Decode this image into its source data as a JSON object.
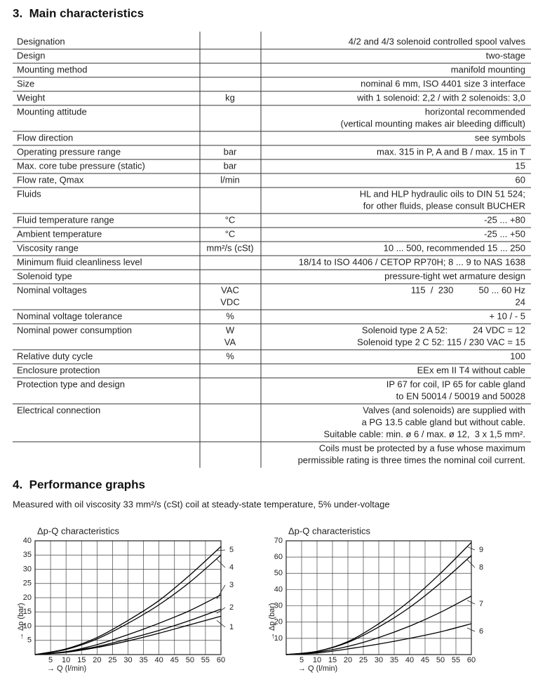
{
  "section3": {
    "title": "3.  Main characteristics",
    "rows": [
      {
        "label": "Designation",
        "value": [
          "4/2 and 4/3 solenoid controlled spool valves"
        ]
      },
      {
        "label": "Design",
        "value": [
          "two-stage"
        ]
      },
      {
        "label": "Mounting method",
        "value": [
          "manifold mounting"
        ]
      },
      {
        "label": "Size",
        "value": [
          "nominal 6 mm, ISO 4401 size 3 interface"
        ]
      },
      {
        "label": "Weight",
        "unit": [
          "kg"
        ],
        "value": [
          "with 1 solenoid: 2,2 / with 2 solenoids: 3,0"
        ]
      },
      {
        "label": "Mounting attitude",
        "value": [
          "horizontal recommended",
          "(vertical mounting makes air bleeding difficult)"
        ]
      },
      {
        "label": "Flow direction",
        "value": [
          "see symbols"
        ]
      },
      {
        "label": "Operating pressure range",
        "unit": [
          "bar"
        ],
        "value": [
          "max. 315 in P, A and B / max. 15 in T"
        ]
      },
      {
        "label": "Max. core tube pressure (static)",
        "unit": [
          "bar"
        ],
        "value": [
          "15"
        ]
      },
      {
        "label": "Flow rate, Qmax",
        "unit": [
          "l/min"
        ],
        "value": [
          "60"
        ]
      },
      {
        "label": "Fluids",
        "value": [
          "HL and HLP hydraulic oils to DIN 51 524;",
          "for other fluids, please consult BUCHER"
        ]
      },
      {
        "label": "Fluid temperature range",
        "unit": [
          "°C"
        ],
        "value": [
          "-25 ... +80"
        ]
      },
      {
        "label": "Ambient temperature",
        "unit": [
          "°C"
        ],
        "value": [
          "-25 ... +50"
        ]
      },
      {
        "label": "Viscosity range",
        "unit": [
          "mm²/s (cSt)"
        ],
        "value": [
          "10 ... 500, recommended 15 ... 250"
        ]
      },
      {
        "label": "Minimum fluid cleanliness level",
        "value": [
          "18/14 to ISO 4406 / CETOP RP70H; 8 ... 9 to NAS 1638"
        ]
      },
      {
        "label": "Solenoid type",
        "value": [
          "pressure-tight wet armature design"
        ]
      },
      {
        "label": "Nominal voltages",
        "unit": [
          "VAC",
          "VDC"
        ],
        "value": [
          "115  /  230          50 ... 60 Hz",
          "24"
        ]
      },
      {
        "label": "Nominal voltage tolerance",
        "unit": [
          "%"
        ],
        "value": [
          "+ 10 / - 5"
        ]
      },
      {
        "label": "Nominal power consumption",
        "unit": [
          "W",
          "VA"
        ],
        "value": [
          "Solenoid type 2 A 52:          24 VDC = 12",
          "Solenoid type 2 C 52: 115 / 230 VAC = 15"
        ]
      },
      {
        "label": "Relative duty cycle",
        "unit": [
          "%"
        ],
        "value": [
          "100"
        ]
      },
      {
        "label": "Enclosure protection",
        "value": [
          "EEx em II T4 without cable"
        ]
      },
      {
        "label": "Protection type and design",
        "value": [
          "IP 67 for coil, IP 65 for cable gland",
          "to EN 50014 / 50019 and 50028"
        ]
      },
      {
        "label": "Electrical connection",
        "value": [
          "Valves (and solenoids) are supplied with",
          "a PG 13.5 cable gland but without cable.",
          "Suitable cable: min. ø 6 / max. ø 12,  3 x 1,5 mm²."
        ]
      },
      {
        "value": [
          "Coils must be protected by a fuse whose maximum",
          "permissible rating is three times the nominal coil current."
        ]
      }
    ]
  },
  "section4": {
    "title": "4.  Performance graphs",
    "note": "Measured with oil viscosity 33 mm²/s (cSt) coil at steady-state temperature, 5% under-voltage"
  },
  "chart_data": [
    {
      "type": "line",
      "title": "Δp-Q characteristics",
      "xlabel": "→ Q (l/min)",
      "ylabel": "→ Δp (bar)",
      "xlim": [
        0,
        60
      ],
      "ylim": [
        0,
        40
      ],
      "xticks": [
        5,
        10,
        15,
        20,
        25,
        30,
        35,
        40,
        45,
        50,
        55,
        60
      ],
      "yticks": [
        5,
        10,
        15,
        20,
        25,
        30,
        35,
        40
      ],
      "grid": true,
      "x": [
        0,
        10,
        20,
        30,
        40,
        50,
        60
      ],
      "series": [
        {
          "name": "1",
          "color": "#000000",
          "values": [
            0,
            0.8,
            2.5,
            4.8,
            7.5,
            10.5,
            13.5
          ]
        },
        {
          "name": "2",
          "color": "#000000",
          "values": [
            0,
            1,
            2.8,
            5.5,
            8.5,
            12,
            16
          ]
        },
        {
          "name": "3",
          "color": "#000000",
          "values": [
            0,
            1,
            3.5,
            7,
            11,
            15.5,
            21
          ]
        },
        {
          "name": "4",
          "color": "#000000",
          "values": [
            0,
            1.8,
            5.5,
            11,
            17.5,
            25.5,
            35
          ]
        },
        {
          "name": "5",
          "color": "#000000",
          "values": [
            0,
            2,
            6,
            12,
            19,
            28,
            38
          ]
        }
      ]
    },
    {
      "type": "line",
      "title": "Δp-Q characteristics",
      "xlabel": "→ Q (l/min)",
      "ylabel": "→ Δp (bar)",
      "xlim": [
        0,
        60
      ],
      "ylim": [
        0,
        70
      ],
      "xticks": [
        5,
        10,
        15,
        20,
        25,
        30,
        35,
        40,
        45,
        50,
        55,
        60
      ],
      "yticks": [
        10,
        20,
        30,
        40,
        50,
        60,
        70
      ],
      "grid": true,
      "x": [
        0,
        10,
        20,
        30,
        40,
        50,
        60
      ],
      "series": [
        {
          "name": "6",
          "color": "#000000",
          "values": [
            0,
            1,
            3.5,
            6.5,
            10,
            14,
            19
          ]
        },
        {
          "name": "7",
          "color": "#000000",
          "values": [
            0,
            1.5,
            5,
            10.5,
            17.5,
            26,
            36
          ]
        },
        {
          "name": "8",
          "color": "#000000",
          "values": [
            0,
            2,
            7.5,
            17,
            29,
            44,
            61
          ]
        },
        {
          "name": "9",
          "color": "#000000",
          "values": [
            0,
            2,
            8,
            19,
            33,
            50,
            69
          ]
        }
      ]
    }
  ]
}
